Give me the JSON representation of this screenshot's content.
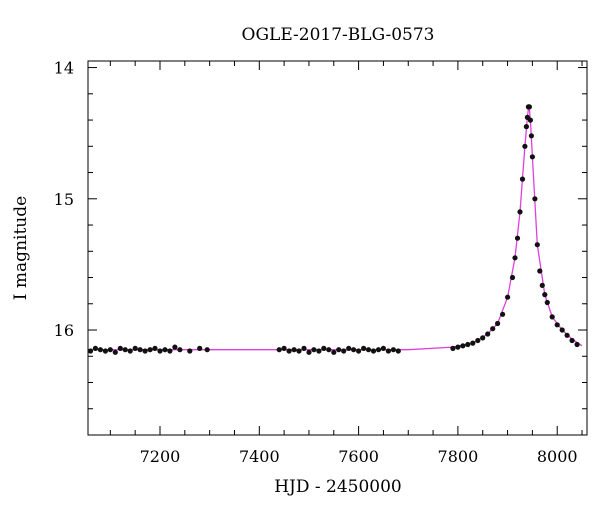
{
  "chart_data": {
    "type": "scatter",
    "title": "OGLE-2017-BLG-0573",
    "xlabel": "HJD - 2450000",
    "ylabel": "I magnitude",
    "xlim": [
      7055,
      8060
    ],
    "ylim": [
      16.8,
      13.95
    ],
    "y_inverted": true,
    "x_ticks_major": [
      7200,
      7400,
      7600,
      7800,
      8000
    ],
    "x_ticks_minor_step": 50,
    "y_ticks_major": [
      14,
      15,
      16
    ],
    "y_ticks_minor_step": 0.2,
    "grid": false,
    "point_color": "#111111",
    "model_color": "#e040e0",
    "model_curve": {
      "baseline_mag": 16.15,
      "peak_x": 7943,
      "peak_mag": 14.28,
      "x": [
        7060,
        7300,
        7500,
        7700,
        7790,
        7830,
        7860,
        7880,
        7900,
        7915,
        7925,
        7935,
        7940,
        7943,
        7946,
        7951,
        7960,
        7975,
        7990,
        8010,
        8030,
        8050
      ],
      "y": [
        16.15,
        16.15,
        16.15,
        16.15,
        16.13,
        16.1,
        16.03,
        15.95,
        15.75,
        15.45,
        15.1,
        14.6,
        14.38,
        14.28,
        14.4,
        14.75,
        15.35,
        15.73,
        15.9,
        16.0,
        16.07,
        16.12
      ]
    },
    "series": [
      {
        "x": [
          7060,
          7070,
          7080,
          7090,
          7100,
          7110,
          7120,
          7130,
          7140,
          7150,
          7160,
          7170,
          7180,
          7190,
          7200,
          7210,
          7220,
          7230,
          7240,
          7260,
          7280,
          7295,
          7440,
          7450,
          7460,
          7470,
          7480,
          7490,
          7500,
          7510,
          7520,
          7530,
          7540,
          7550,
          7560,
          7570,
          7580,
          7590,
          7600,
          7610,
          7620,
          7630,
          7640,
          7650,
          7660,
          7670,
          7680,
          7790,
          7800,
          7810,
          7820,
          7830,
          7840,
          7850,
          7860,
          7870,
          7880,
          7890,
          7900,
          7910,
          7915,
          7920,
          7925,
          7930,
          7935,
          7938,
          7940,
          7942,
          7944,
          7946,
          7948,
          7950,
          7955,
          7960,
          7965,
          7970,
          7975,
          7980,
          7990,
          8000,
          8010,
          8020,
          8030,
          8040
        ],
        "values": [
          16.16,
          16.14,
          16.15,
          16.16,
          16.15,
          16.17,
          16.14,
          16.15,
          16.16,
          16.14,
          16.15,
          16.16,
          16.15,
          16.14,
          16.16,
          16.15,
          16.16,
          16.13,
          16.15,
          16.16,
          16.14,
          16.15,
          16.15,
          16.14,
          16.16,
          16.15,
          16.16,
          16.14,
          16.17,
          16.15,
          16.16,
          16.14,
          16.15,
          16.17,
          16.15,
          16.16,
          16.14,
          16.15,
          16.16,
          16.14,
          16.15,
          16.16,
          16.15,
          16.14,
          16.16,
          16.15,
          16.16,
          16.14,
          16.13,
          16.12,
          16.11,
          16.1,
          16.08,
          16.06,
          16.03,
          15.99,
          15.95,
          15.88,
          15.75,
          15.6,
          15.45,
          15.3,
          15.1,
          14.85,
          14.6,
          14.45,
          14.38,
          14.3,
          14.3,
          14.4,
          14.52,
          14.68,
          15.0,
          15.35,
          15.55,
          15.66,
          15.73,
          15.79,
          15.9,
          15.96,
          16.0,
          16.04,
          16.08,
          16.11
        ]
      }
    ]
  }
}
